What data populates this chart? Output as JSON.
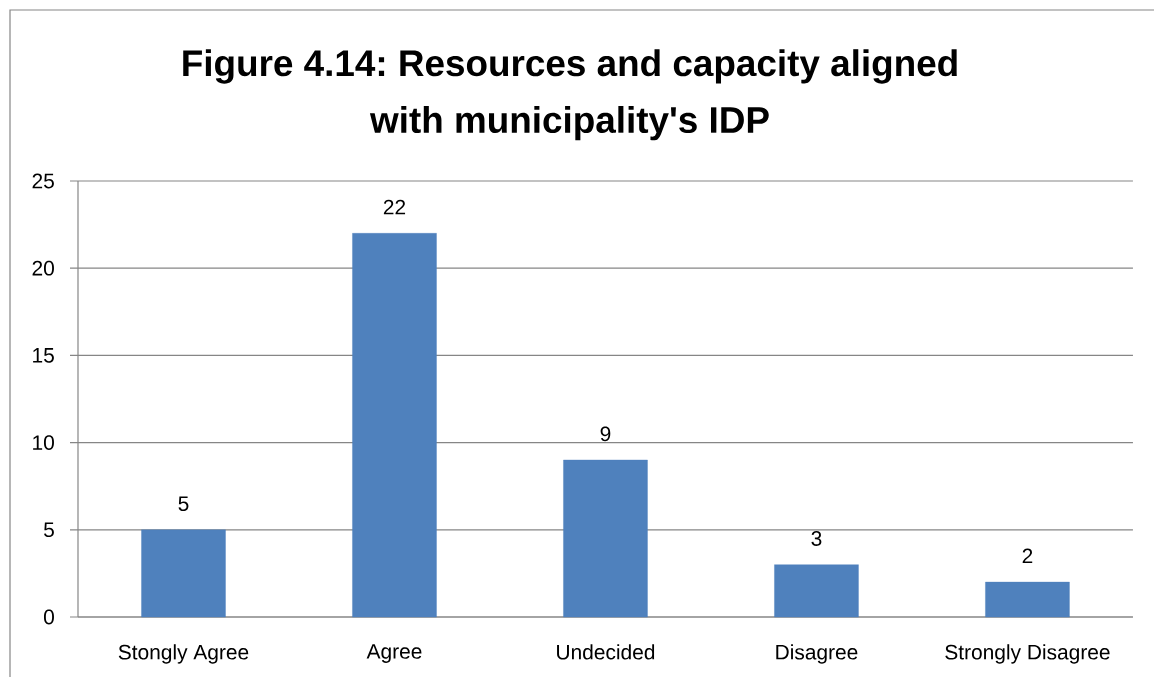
{
  "chart_data": {
    "type": "bar",
    "title": "Figure 4.14: Resources and capacity aligned with municipality's IDP",
    "categories": [
      "Stongly Agree",
      "Agree",
      "Undecided",
      "Disagree",
      "Strongly Disagree"
    ],
    "values": [
      5,
      22,
      9,
      3,
      2
    ],
    "color": "#4f81bd",
    "ylim": [
      0,
      25
    ],
    "yticks": [
      0,
      5,
      10,
      15,
      20,
      25
    ],
    "grid": "y",
    "data_labels": true
  }
}
